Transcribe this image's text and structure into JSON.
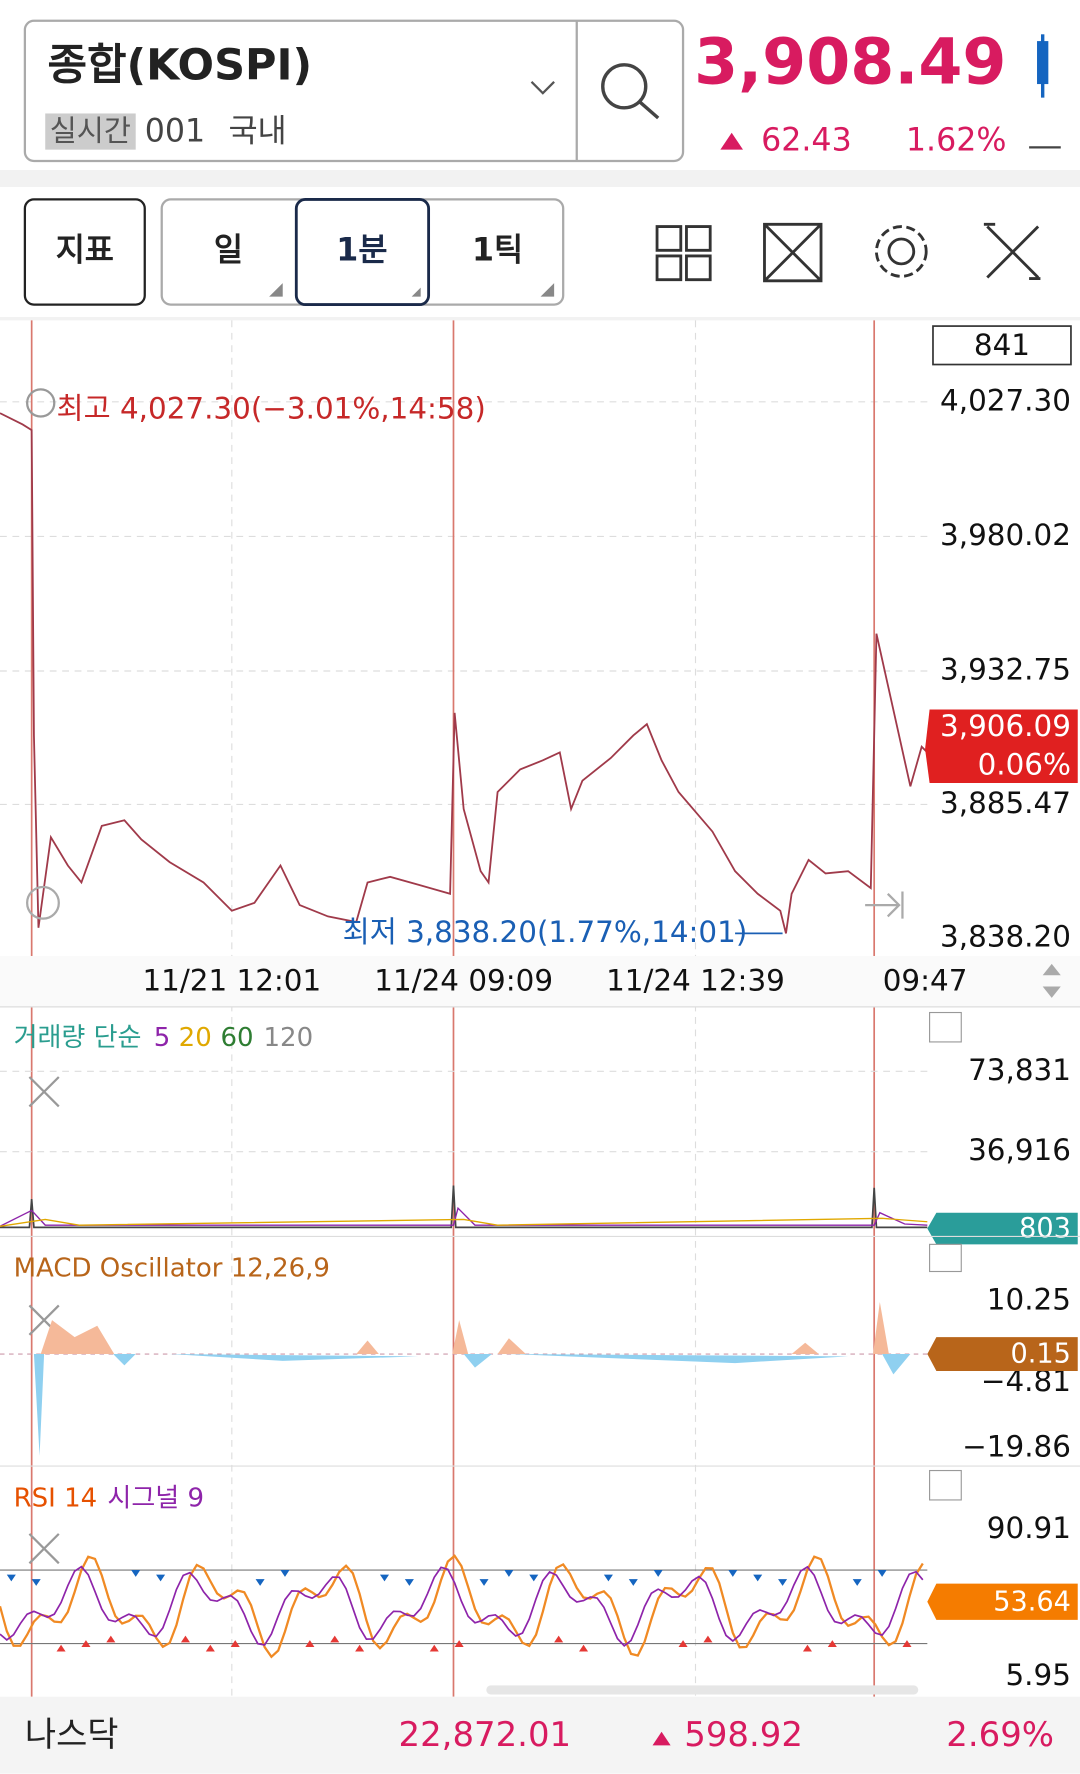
{
  "header": {
    "name": "종합(KOSPI)",
    "badge": "실시간",
    "code": "001",
    "market": "국내",
    "price": "3,908.49",
    "change": "62.43",
    "change_pct": "1.62%"
  },
  "toolbar": {
    "indicator": "지표",
    "period_day": "일",
    "period_minute": "1분",
    "period_tick": "1틱"
  },
  "main_chart": {
    "box_value": "841",
    "high_label": "최고 4,027.30(−3.01%,14:58)",
    "low_label": "최저 3,838.20(1.77%,14:01)",
    "price_ticks": [
      "4,027.30",
      "3,980.02",
      "3,932.75",
      "3,885.47",
      "3,838.20"
    ],
    "current_price": "3,906.09",
    "current_pct": "0.06%",
    "time_labels": [
      "11/21 12:01",
      "11/24 09:09",
      "11/24 12:39",
      "09:47"
    ]
  },
  "volume": {
    "title": "거래량 단순",
    "ma": [
      "5",
      "20",
      "60",
      "120"
    ],
    "ticks": [
      "73,831",
      "36,916"
    ],
    "current": "803"
  },
  "macd": {
    "title": "MACD Oscillator 12,26,9",
    "ticks": [
      "10.25",
      "−4.81",
      "−19.86"
    ],
    "current": "0.15"
  },
  "rsi": {
    "title": "RSI 14",
    "signal": "시그널 9",
    "ticks": [
      "90.91",
      "5.95"
    ],
    "current": "53.64"
  },
  "footer": {
    "name": "나스닥",
    "price": "22,872.01",
    "change": "598.92",
    "change_pct": "2.69%"
  }
}
